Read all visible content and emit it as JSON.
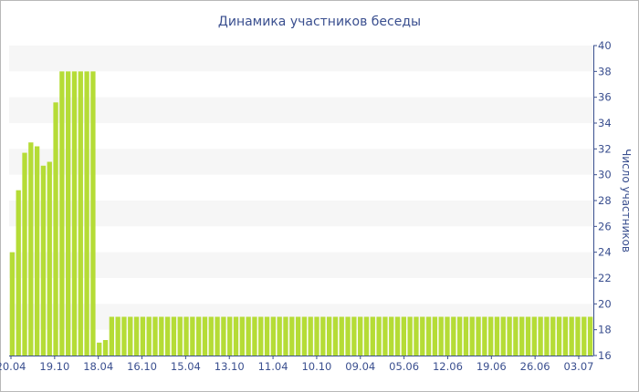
{
  "chart_data": {
    "type": "bar",
    "title": "Динамика участников беседы",
    "xlabel": "",
    "ylabel": "Число участников",
    "ylim": [
      16,
      40
    ],
    "yticks": [
      16,
      18,
      20,
      22,
      24,
      26,
      28,
      30,
      32,
      34,
      36,
      38,
      40
    ],
    "xtick_labels": [
      "20.04",
      "19.10",
      "18.04",
      "16.10",
      "15.04",
      "13.10",
      "11.04",
      "10.10",
      "09.04",
      "05.06",
      "12.06",
      "19.06",
      "26.06",
      "03.07"
    ],
    "grid": "horizontal bands",
    "y_axis_position": "right",
    "bar_color": "#b5dc36",
    "values": [
      24,
      28.8,
      31.7,
      32.5,
      32.2,
      30.7,
      31,
      35.6,
      38,
      38,
      38,
      38,
      38,
      38,
      17,
      17.2,
      19,
      19,
      19,
      19,
      19,
      19,
      19,
      19,
      19,
      19,
      19,
      19,
      19,
      19,
      19,
      19,
      19,
      19,
      19,
      19,
      19,
      19,
      19,
      19,
      19,
      19,
      19,
      19,
      19,
      19,
      19,
      19,
      19,
      19,
      19,
      19,
      19,
      19,
      19,
      19,
      19,
      19,
      19,
      19,
      19,
      19,
      19,
      19,
      19,
      19,
      19,
      19,
      19,
      19,
      19,
      19,
      19,
      19,
      19,
      19,
      19,
      19,
      19,
      19,
      19,
      19,
      19,
      19,
      19,
      19,
      19,
      19,
      19,
      19,
      19,
      19,
      19,
      19
    ]
  }
}
